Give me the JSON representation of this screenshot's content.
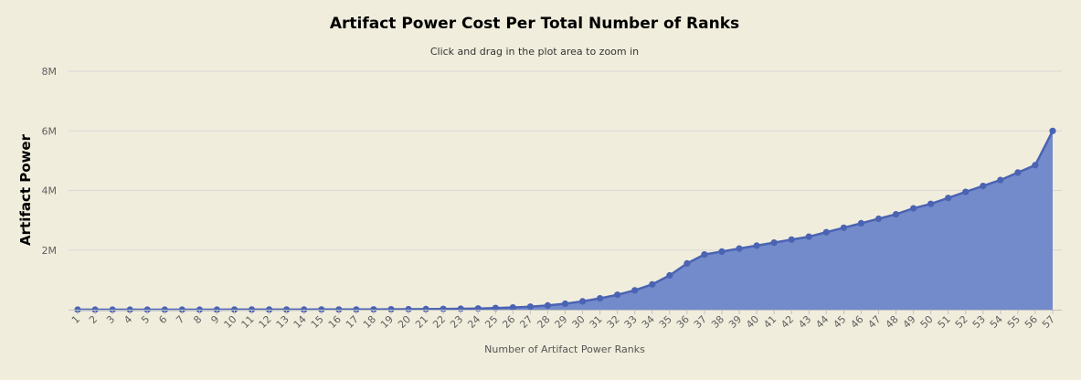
{
  "chart_data": {
    "type": "area",
    "title": "Artifact Power Cost Per Total Number of Ranks",
    "subtitle": "Click and drag in the plot area to zoom in",
    "xlabel": "Number of Artifact Power Ranks",
    "ylabel": "Artifact Power",
    "ylim": [
      0,
      8000000
    ],
    "yticks": [
      {
        "value": 2000000,
        "label": "2M"
      },
      {
        "value": 4000000,
        "label": "4M"
      },
      {
        "value": 6000000,
        "label": "6M"
      },
      {
        "value": 8000000,
        "label": "8M"
      }
    ],
    "grid": true,
    "legend": "none",
    "colors": {
      "fill": "#6b86c9",
      "line": "#4a63b3",
      "marker": "#4a63b3"
    },
    "categories": [
      "1",
      "2",
      "3",
      "4",
      "5",
      "6",
      "7",
      "8",
      "9",
      "10",
      "11",
      "12",
      "13",
      "14",
      "15",
      "16",
      "17",
      "18",
      "19",
      "20",
      "21",
      "22",
      "23",
      "24",
      "25",
      "26",
      "27",
      "28",
      "29",
      "30",
      "31",
      "32",
      "33",
      "34",
      "35",
      "36",
      "37",
      "38",
      "39",
      "40",
      "41",
      "42",
      "43",
      "44",
      "45",
      "46",
      "47",
      "48",
      "49",
      "50",
      "51",
      "52",
      "53",
      "54",
      "55",
      "56",
      "57"
    ],
    "values": [
      100,
      300,
      400,
      500,
      600,
      800,
      1000,
      1200,
      1500,
      1800,
      2200,
      2700,
      3300,
      4000,
      4800,
      5800,
      7000,
      9000,
      11000,
      14000,
      18000,
      23000,
      30000,
      40000,
      55000,
      75000,
      100000,
      140000,
      200000,
      280000,
      380000,
      500000,
      650000,
      850000,
      1150000,
      1550000,
      1850000,
      1950000,
      2050000,
      2150000,
      2250000,
      2350000,
      2450000,
      2600000,
      2750000,
      2900000,
      3050000,
      3200000,
      3400000,
      3550000,
      3750000,
      3950000,
      4150000,
      4350000,
      4600000,
      4850000,
      6000000
    ]
  }
}
